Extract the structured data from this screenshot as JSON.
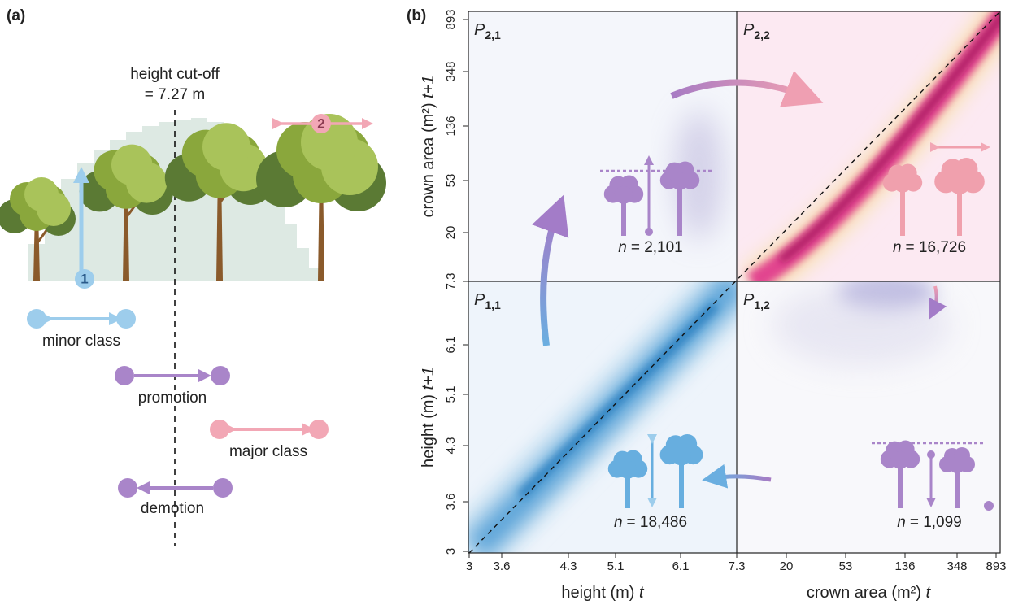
{
  "panel_a": {
    "label": "(a)",
    "cutoff": [
      "height cut-off",
      "= 7.27 m"
    ],
    "markers": [
      "1",
      "2"
    ],
    "transitions": [
      "minor class",
      "promotion",
      "major class",
      "demotion"
    ]
  },
  "panel_b": {
    "label": "(b)",
    "quadrants": [
      {
        "symbol": "P",
        "index": "2,1",
        "n_var": "n",
        "n_text": "= 2,101"
      },
      {
        "symbol": "P",
        "index": "2,2",
        "n_var": "n",
        "n_text": "= 16,726"
      },
      {
        "symbol": "P",
        "index": "1,1",
        "n_var": "n",
        "n_text": "= 18,486"
      },
      {
        "symbol": "P",
        "index": "1,2",
        "n_var": "n",
        "n_text": "= 1,099"
      }
    ],
    "y_upper_ticks": [
      "893",
      "348",
      "136",
      "53",
      "20"
    ],
    "y_lower_ticks": [
      "7.3",
      "6.1",
      "5.1",
      "4.3",
      "3.6",
      "3"
    ],
    "x_left_ticks": [
      "3",
      "3.6",
      "4.3",
      "5.1",
      "6.1",
      "7.3"
    ],
    "x_right_ticks": [
      "20",
      "53",
      "136",
      "348",
      "893"
    ],
    "y_upper_title": {
      "text": "crown area (m²)",
      "var": "t+1"
    },
    "y_lower_title": {
      "text": "height (m)",
      "var": "t+1"
    },
    "x_left_title": {
      "text": "height (m)",
      "var": "t"
    },
    "x_right_title": {
      "text": "crown area (m²)",
      "var": "t"
    }
  }
}
